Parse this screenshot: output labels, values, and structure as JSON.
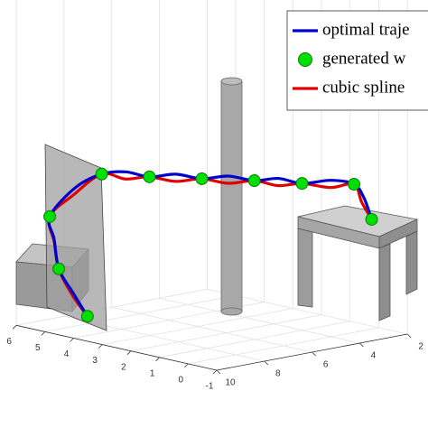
{
  "chart_data": {
    "type": "line3d",
    "series": [
      {
        "name": "optimal traje",
        "color": "#0000cc",
        "x": [
          9.3,
          9.7,
          9.9,
          9.5,
          9.2,
          8.6,
          8.1,
          7.7,
          7.3,
          6.8,
          6.3,
          5.8,
          5.3,
          4.9,
          4.5,
          3.9,
          3.4,
          3.1,
          2.9
        ],
        "y": [
          4.1,
          4.3,
          4.6,
          5.1,
          5.5,
          5.1,
          4.6,
          4.1,
          3.6,
          3.1,
          2.6,
          2.1,
          1.6,
          1.1,
          0.6,
          0.1,
          -0.3,
          -0.4,
          -0.5
        ],
        "z": [
          0.5,
          1.2,
          1.8,
          2.5,
          3.0,
          3.8,
          4.2,
          4.3,
          4.2,
          4.3,
          4.2,
          4.3,
          4.2,
          4.3,
          4.2,
          4.3,
          4.2,
          3.8,
          3.2
        ]
      },
      {
        "name": "generated w",
        "color": "#00e000",
        "x": [
          9.3,
          9.9,
          9.2,
          8.1,
          7.3,
          6.3,
          5.3,
          4.5,
          3.4,
          2.9
        ],
        "y": [
          4.1,
          4.6,
          5.5,
          4.6,
          3.6,
          2.6,
          1.6,
          0.6,
          -0.3,
          -0.5
        ],
        "z": [
          0.5,
          1.8,
          3.0,
          4.2,
          4.2,
          4.2,
          4.2,
          4.2,
          4.2,
          3.2
        ]
      },
      {
        "name": "cubic spline",
        "color": "#e00000",
        "x": [
          9.3,
          9.6,
          9.9,
          9.6,
          9.2,
          8.7,
          8.1,
          7.7,
          7.3,
          6.8,
          6.3,
          5.8,
          5.3,
          4.9,
          4.5,
          3.9,
          3.4,
          3.2,
          2.9
        ],
        "y": [
          4.1,
          4.4,
          4.6,
          5.0,
          5.5,
          5.1,
          4.6,
          4.1,
          3.6,
          3.1,
          2.6,
          2.1,
          1.6,
          1.1,
          0.6,
          0.1,
          -0.3,
          -0.4,
          -0.5
        ],
        "z": [
          0.5,
          1.1,
          1.8,
          2.4,
          3.0,
          3.6,
          4.2,
          4.1,
          4.2,
          4.1,
          4.2,
          4.1,
          4.2,
          4.1,
          4.2,
          4.1,
          4.2,
          3.7,
          3.2
        ]
      }
    ],
    "xlim": [
      2,
      10
    ],
    "xticks": [
      2,
      4,
      6,
      8,
      10
    ],
    "ylim": [
      -1,
      6
    ],
    "yticks": [
      -1,
      0,
      1,
      2,
      3,
      4,
      5,
      6
    ],
    "grid": true
  }
}
